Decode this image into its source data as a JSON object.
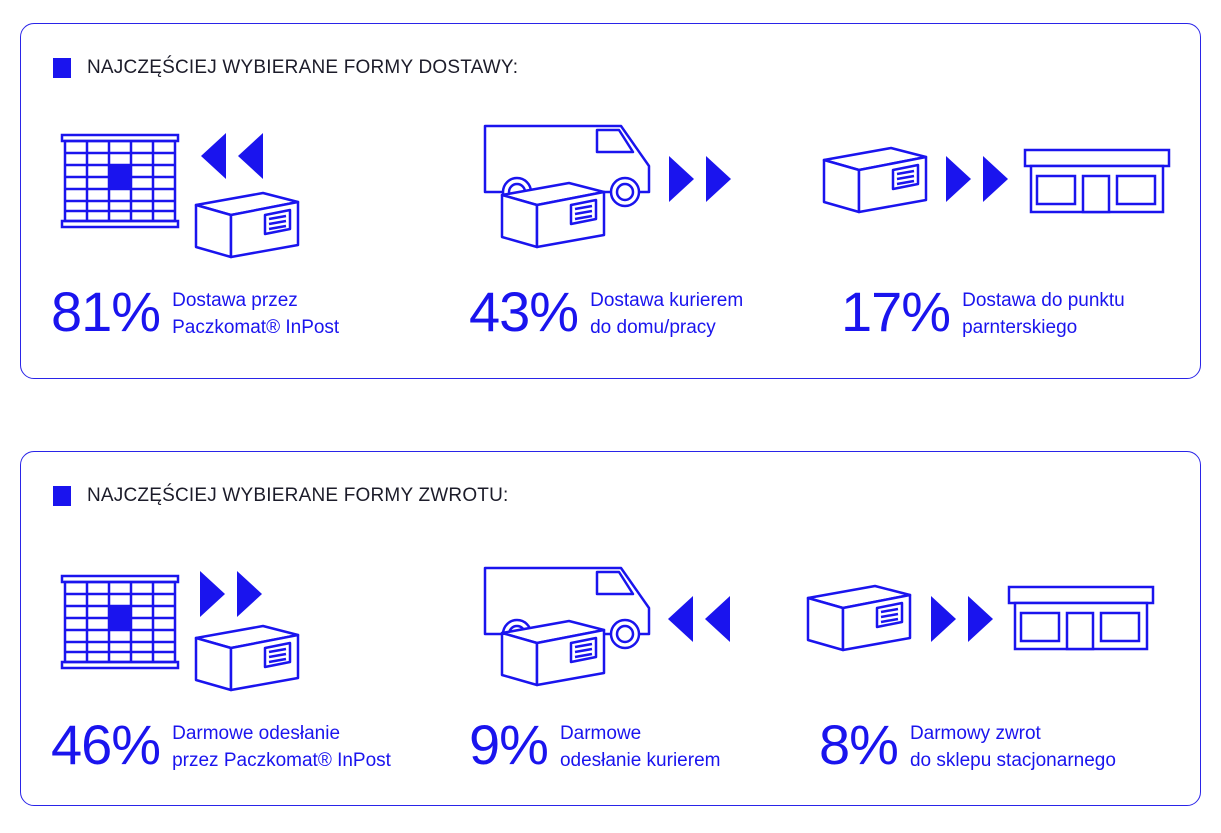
{
  "colors": {
    "accent": "#1a14ee",
    "text": "#1c1c2a",
    "border": "#2a24e8"
  },
  "delivery": {
    "title": "NAJCZĘŚCIEJ WYBIERANE FORMY DOSTAWY:",
    "items": [
      {
        "percent": "81%",
        "line1": "Dostawa przez",
        "line2": "Paczkomat® InPost",
        "icons": [
          "parcel-locker-icon",
          "arrow-left-icon",
          "package-icon"
        ]
      },
      {
        "percent": "43%",
        "line1": "Dostawa kurierem",
        "line2": "do domu/pracy",
        "icons": [
          "van-icon",
          "package-icon",
          "arrow-right-icon"
        ]
      },
      {
        "percent": "17%",
        "line1": "Dostawa do punktu",
        "line2": "parnterskiego",
        "icons": [
          "package-icon",
          "arrow-right-icon",
          "shop-icon"
        ]
      }
    ]
  },
  "return": {
    "title": "NAJCZĘŚCIEJ WYBIERANE FORMY ZWROTU:",
    "items": [
      {
        "percent": "46%",
        "line1": "Darmowe odesłanie",
        "line2": "przez Paczkomat® InPost",
        "icons": [
          "parcel-locker-icon",
          "arrow-right-icon",
          "package-icon"
        ]
      },
      {
        "percent": "9%",
        "line1": "Darmowe",
        "line2": "odesłanie kurierem",
        "icons": [
          "van-icon",
          "package-icon",
          "arrow-left-icon"
        ]
      },
      {
        "percent": "8%",
        "line1": "Darmowy zwrot",
        "line2": "do sklepu stacjonarnego",
        "icons": [
          "package-icon",
          "arrow-right-icon",
          "shop-icon"
        ]
      }
    ]
  }
}
